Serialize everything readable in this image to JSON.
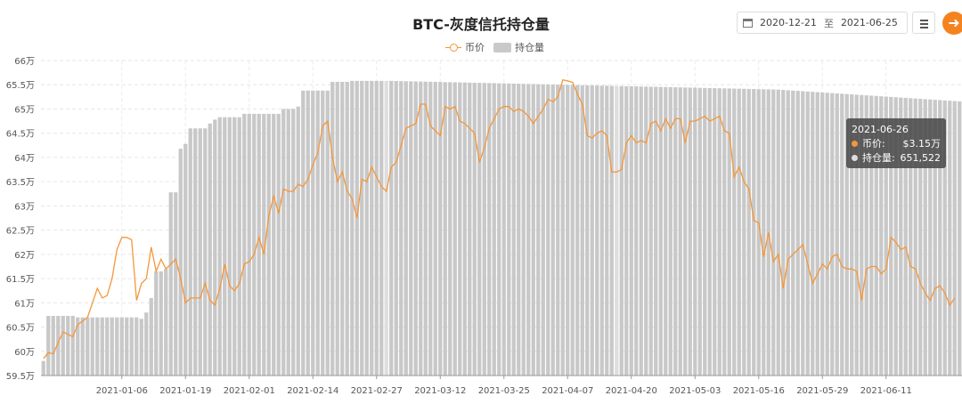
{
  "chart_data": {
    "type": "bar+line",
    "title": "BTC-灰度信托持仓量",
    "legend": [
      "币价",
      "持仓量"
    ],
    "y_axis": {
      "labels": [
        "59.5万",
        "60万",
        "60.5万",
        "61万",
        "61.5万",
        "62万",
        "62.5万",
        "63万",
        "63.5万",
        "64万",
        "64.5万",
        "65万",
        "65.5万",
        "66万"
      ],
      "min": 595000,
      "max": 660000
    },
    "x_labels": [
      "2021-01-06",
      "2021-01-19",
      "2021-02-01",
      "2021-02-14",
      "2021-02-27",
      "2021-03-12",
      "2021-03-25",
      "2021-04-07",
      "2021-04-20",
      "2021-05-03",
      "2021-05-16",
      "2021-05-29",
      "2021-06-11"
    ],
    "start_date": "2020-12-21",
    "end_date": "2021-06-26",
    "holdings_breakpoints": [
      [
        0,
        598000
      ],
      [
        1,
        607300
      ],
      [
        6,
        607300
      ],
      [
        7,
        607000
      ],
      [
        20,
        606700
      ],
      [
        21,
        608000
      ],
      [
        22,
        611000
      ],
      [
        23,
        616500
      ],
      [
        25,
        617000
      ],
      [
        26,
        632800
      ],
      [
        28,
        641800
      ],
      [
        29,
        642800
      ],
      [
        30,
        646000
      ],
      [
        34,
        647000
      ],
      [
        35,
        647800
      ],
      [
        36,
        648300
      ],
      [
        38,
        648300
      ],
      [
        41,
        649000
      ],
      [
        48,
        649000
      ],
      [
        49,
        650000
      ],
      [
        52,
        650500
      ],
      [
        53,
        653800
      ],
      [
        58,
        653800
      ],
      [
        59,
        655600
      ],
      [
        62,
        655600
      ],
      [
        63,
        655800
      ],
      [
        71,
        655800
      ],
      [
        150,
        654000
      ],
      [
        188,
        651500
      ]
    ],
    "price_points": [
      [
        0,
        598500
      ],
      [
        1,
        599700
      ],
      [
        2,
        599500
      ],
      [
        4,
        604000
      ],
      [
        6,
        603000
      ],
      [
        7,
        605500
      ],
      [
        9,
        607000
      ],
      [
        10,
        610000
      ],
      [
        11,
        613000
      ],
      [
        12,
        611000
      ],
      [
        13,
        611500
      ],
      [
        14,
        615000
      ],
      [
        15,
        621000
      ],
      [
        16,
        623500
      ],
      [
        17,
        623500
      ],
      [
        18,
        623000
      ],
      [
        19,
        610500
      ],
      [
        20,
        614000
      ],
      [
        21,
        615000
      ],
      [
        22,
        621500
      ],
      [
        23,
        616500
      ],
      [
        24,
        619000
      ],
      [
        25,
        617000
      ],
      [
        26,
        618000
      ],
      [
        27,
        619000
      ],
      [
        28,
        615000
      ],
      [
        29,
        610000
      ],
      [
        30,
        611000
      ],
      [
        32,
        611000
      ],
      [
        33,
        614000
      ],
      [
        34,
        610500
      ],
      [
        35,
        609500
      ],
      [
        36,
        613000
      ],
      [
        37,
        618000
      ],
      [
        38,
        613500
      ],
      [
        39,
        612500
      ],
      [
        40,
        614000
      ],
      [
        41,
        618000
      ],
      [
        42,
        618500
      ],
      [
        43,
        620000
      ],
      [
        44,
        623500
      ],
      [
        45,
        620000
      ],
      [
        46,
        628000
      ],
      [
        47,
        632000
      ],
      [
        48,
        628500
      ],
      [
        49,
        633500
      ],
      [
        50,
        633000
      ],
      [
        51,
        633000
      ],
      [
        52,
        634500
      ],
      [
        53,
        634000
      ],
      [
        54,
        635500
      ],
      [
        55,
        638500
      ],
      [
        56,
        641000
      ],
      [
        57,
        646500
      ],
      [
        58,
        647500
      ],
      [
        59,
        640000
      ],
      [
        60,
        635000
      ],
      [
        61,
        637000
      ],
      [
        62,
        633000
      ],
      [
        63,
        631500
      ],
      [
        64,
        627500
      ],
      [
        65,
        635500
      ],
      [
        66,
        635000
      ],
      [
        67,
        638000
      ],
      [
        68,
        636000
      ],
      [
        69,
        634000
      ],
      [
        70,
        633000
      ],
      [
        71,
        638000
      ],
      [
        72,
        639000
      ],
      [
        73,
        642500
      ],
      [
        74,
        646000
      ],
      [
        75,
        646500
      ],
      [
        76,
        647000
      ],
      [
        77,
        651000
      ],
      [
        78,
        651000
      ],
      [
        79,
        646500
      ],
      [
        80,
        645500
      ],
      [
        81,
        644500
      ],
      [
        82,
        650500
      ],
      [
        83,
        650000
      ],
      [
        84,
        650500
      ],
      [
        85,
        647500
      ],
      [
        86,
        647000
      ],
      [
        87,
        646000
      ],
      [
        88,
        645000
      ],
      [
        89,
        639000
      ],
      [
        90,
        642000
      ],
      [
        91,
        646000
      ],
      [
        92,
        648000
      ],
      [
        93,
        650000
      ],
      [
        94,
        650500
      ],
      [
        95,
        650500
      ],
      [
        96,
        649500
      ],
      [
        97,
        650000
      ],
      [
        98,
        649500
      ],
      [
        99,
        648500
      ],
      [
        100,
        647000
      ],
      [
        101,
        648500
      ],
      [
        102,
        650000
      ],
      [
        103,
        652000
      ],
      [
        104,
        651500
      ],
      [
        105,
        652500
      ],
      [
        106,
        656000
      ],
      [
        107,
        655800
      ],
      [
        108,
        655500
      ],
      [
        109,
        653000
      ],
      [
        110,
        651000
      ],
      [
        111,
        644500
      ],
      [
        112,
        644000
      ],
      [
        113,
        645000
      ],
      [
        114,
        645500
      ],
      [
        115,
        644500
      ],
      [
        116,
        637000
      ],
      [
        117,
        637000
      ],
      [
        118,
        637500
      ],
      [
        119,
        643000
      ],
      [
        120,
        644500
      ],
      [
        121,
        643000
      ],
      [
        122,
        643500
      ],
      [
        123,
        643000
      ],
      [
        124,
        647000
      ],
      [
        125,
        647500
      ],
      [
        126,
        645500
      ],
      [
        127,
        648000
      ],
      [
        128,
        646000
      ],
      [
        129,
        648000
      ],
      [
        130,
        648000
      ],
      [
        131,
        643000
      ],
      [
        132,
        647500
      ],
      [
        133,
        647500
      ],
      [
        134,
        648000
      ],
      [
        135,
        648500
      ],
      [
        136,
        647500
      ],
      [
        137,
        648000
      ],
      [
        138,
        648500
      ],
      [
        139,
        645500
      ],
      [
        140,
        645000
      ],
      [
        141,
        636000
      ],
      [
        142,
        638000
      ],
      [
        143,
        635000
      ],
      [
        144,
        633500
      ],
      [
        145,
        627000
      ],
      [
        146,
        626500
      ],
      [
        147,
        619500
      ],
      [
        148,
        624500
      ],
      [
        149,
        618500
      ],
      [
        150,
        620000
      ],
      [
        151,
        613000
      ],
      [
        152,
        619000
      ],
      [
        153,
        620000
      ],
      [
        154,
        621000
      ],
      [
        155,
        622000
      ],
      [
        156,
        618000
      ],
      [
        157,
        614000
      ],
      [
        158,
        616000
      ],
      [
        159,
        618000
      ],
      [
        160,
        617000
      ],
      [
        161,
        619500
      ],
      [
        162,
        620000
      ],
      [
        163,
        617500
      ],
      [
        164,
        617000
      ],
      [
        165,
        617000
      ],
      [
        166,
        616500
      ],
      [
        167,
        610500
      ],
      [
        168,
        617000
      ],
      [
        169,
        617500
      ],
      [
        170,
        617500
      ],
      [
        171,
        616000
      ],
      [
        172,
        617000
      ],
      [
        173,
        623500
      ],
      [
        174,
        622500
      ],
      [
        175,
        621000
      ],
      [
        176,
        621500
      ],
      [
        177,
        617500
      ],
      [
        178,
        617000
      ],
      [
        179,
        614000
      ],
      [
        180,
        612000
      ],
      [
        181,
        610500
      ],
      [
        182,
        613000
      ],
      [
        183,
        613500
      ],
      [
        184,
        612000
      ],
      [
        185,
        609500
      ],
      [
        186,
        611000
      ]
    ],
    "tooltip": {
      "date": "2021-06-26",
      "price_label": "币价:",
      "price_value": "$3.15万",
      "holdings_label": "持仓量:",
      "holdings_value": "651,522"
    },
    "colors": {
      "price_line": "#f4973a",
      "bars": "#c8c8c8",
      "bar_highlight": "#dedede"
    }
  },
  "controls": {
    "date_from": "2020-12-21",
    "date_sep": "至",
    "date_to": "2021-06-25",
    "menu_icon": "hamburger-icon",
    "go_icon": "arrow-right-icon"
  }
}
